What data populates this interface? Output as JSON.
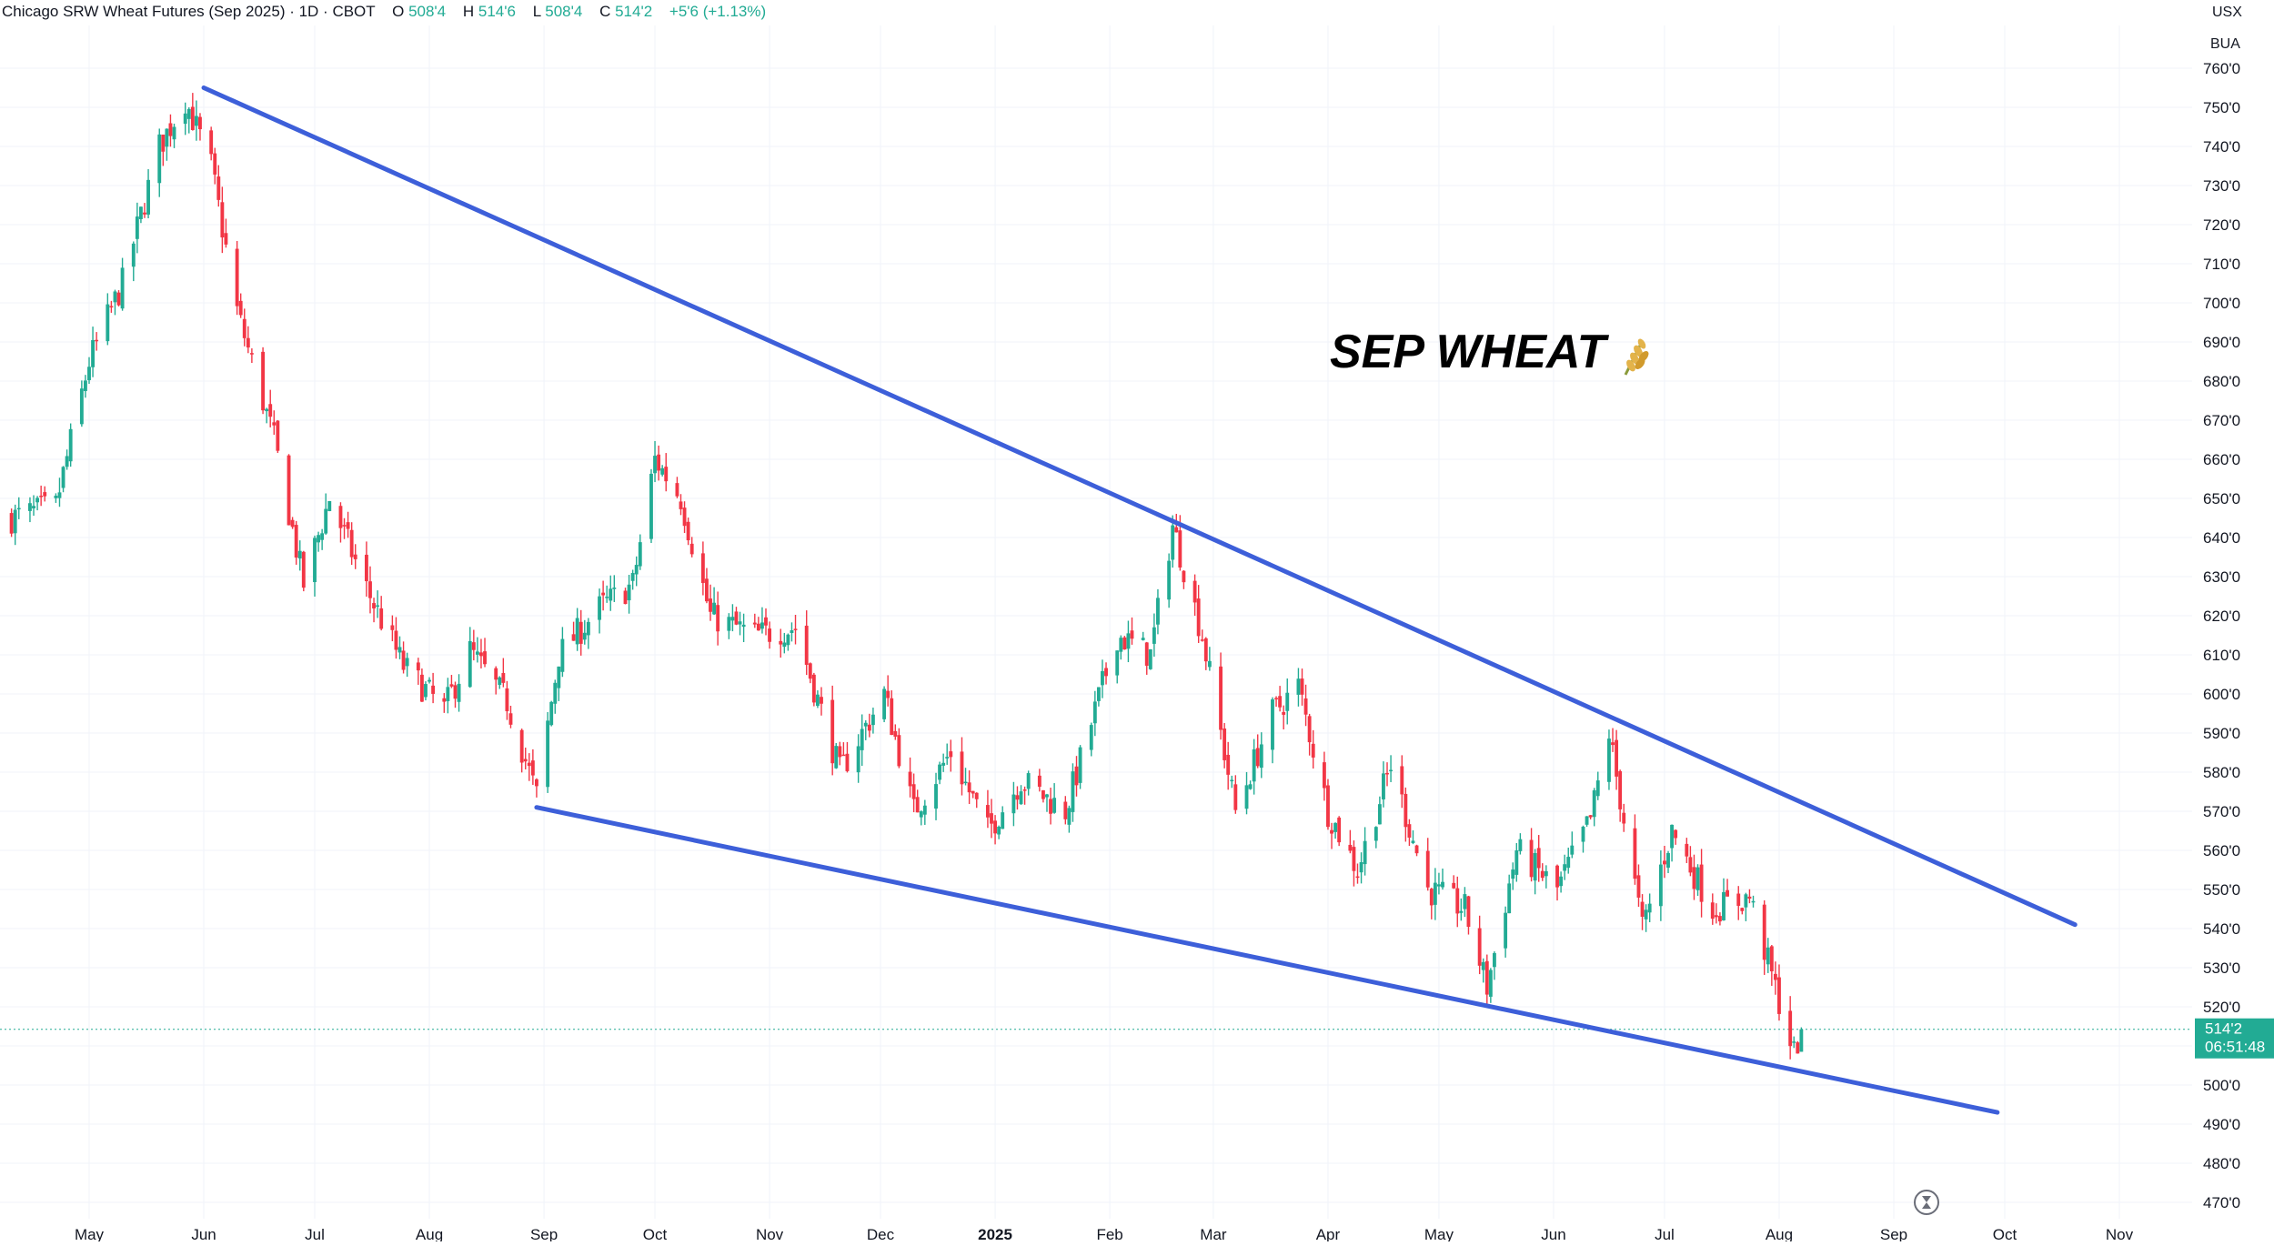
{
  "header": {
    "symbol_title": "Chicago SRW Wheat Futures (Sep 2025) · 1D · CBOT",
    "open_label": "O",
    "open_value": "508'4",
    "high_label": "H",
    "high_value": "514'6",
    "low_label": "L",
    "low_value": "508'4",
    "close_label": "C",
    "close_value": "514'2",
    "change": "+5'6 (+1.13%)"
  },
  "scale_currency": "USX",
  "scale_unit": "BUA",
  "annotation": {
    "text": "SEP WHEAT",
    "icon": "wheat-icon",
    "emoji": "🌾"
  },
  "price_tag": {
    "price": "514'2",
    "countdown": "06:51:48",
    "value": 514.25
  },
  "colors": {
    "up": "#22ab94",
    "down": "#f23645",
    "trendline": "#3d5fd9",
    "grid": "#f0f3fa",
    "text": "#131722",
    "price_tag_bg": "#22ab94"
  },
  "chart_data": {
    "type": "candlestick",
    "title": "Chicago SRW Wheat Futures (Sep 2025)",
    "interval": "1D",
    "exchange": "CBOT",
    "unit": "USX / BUA",
    "ylim": [
      465,
      762
    ],
    "y_ticks": [
      "760'0",
      "750'0",
      "740'0",
      "730'0",
      "720'0",
      "710'0",
      "700'0",
      "690'0",
      "680'0",
      "670'0",
      "660'0",
      "650'0",
      "640'0",
      "630'0",
      "620'0",
      "610'0",
      "600'0",
      "590'0",
      "580'0",
      "570'0",
      "560'0",
      "550'0",
      "540'0",
      "530'0",
      "520'0",
      "500'0",
      "490'0",
      "480'0",
      "470'0"
    ],
    "y_tick_values": [
      760,
      750,
      740,
      730,
      720,
      710,
      700,
      690,
      680,
      670,
      660,
      650,
      640,
      630,
      620,
      610,
      600,
      590,
      580,
      570,
      560,
      550,
      540,
      530,
      520,
      500,
      490,
      480,
      470
    ],
    "x_ticks": [
      "May",
      "Jun",
      "Jul",
      "Aug",
      "Sep",
      "Oct",
      "Nov",
      "Dec",
      "2025",
      "Feb",
      "Mar",
      "Apr",
      "May",
      "Jun",
      "Jul",
      "Aug",
      "Sep",
      "Oct",
      "Nov"
    ],
    "x_tick_dates": [
      "2024-05-01",
      "2024-06-01",
      "2024-07-01",
      "2024-08-01",
      "2024-09-01",
      "2024-10-01",
      "2024-11-01",
      "2024-12-01",
      "2025-01-01",
      "2025-02-01",
      "2025-03-01",
      "2025-04-01",
      "2025-05-01",
      "2025-06-01",
      "2025-07-01",
      "2025-08-01",
      "2025-09-01",
      "2025-10-01",
      "2025-11-01"
    ],
    "x_range": [
      "2024-04-10",
      "2025-11-18"
    ],
    "close_path": [
      {
        "date": "2024-04-10",
        "close": 645
      },
      {
        "date": "2024-04-22",
        "close": 648
      },
      {
        "date": "2024-05-01",
        "close": 685
      },
      {
        "date": "2024-05-10",
        "close": 705
      },
      {
        "date": "2024-05-20",
        "close": 740
      },
      {
        "date": "2024-05-27",
        "close": 752
      },
      {
        "date": "2024-06-03",
        "close": 735
      },
      {
        "date": "2024-06-10",
        "close": 698
      },
      {
        "date": "2024-06-20",
        "close": 665
      },
      {
        "date": "2024-06-28",
        "close": 628
      },
      {
        "date": "2024-07-05",
        "close": 650
      },
      {
        "date": "2024-07-15",
        "close": 627
      },
      {
        "date": "2024-07-25",
        "close": 607
      },
      {
        "date": "2024-08-05",
        "close": 596
      },
      {
        "date": "2024-08-12",
        "close": 611
      },
      {
        "date": "2024-08-22",
        "close": 598
      },
      {
        "date": "2024-08-30",
        "close": 574
      },
      {
        "date": "2024-09-05",
        "close": 610
      },
      {
        "date": "2024-09-16",
        "close": 622
      },
      {
        "date": "2024-09-25",
        "close": 628
      },
      {
        "date": "2024-10-01",
        "close": 660
      },
      {
        "date": "2024-10-08",
        "close": 650
      },
      {
        "date": "2024-10-16",
        "close": 620
      },
      {
        "date": "2024-10-28",
        "close": 615
      },
      {
        "date": "2024-11-08",
        "close": 617
      },
      {
        "date": "2024-11-20",
        "close": 580
      },
      {
        "date": "2024-12-02",
        "close": 600
      },
      {
        "date": "2024-12-10",
        "close": 570
      },
      {
        "date": "2024-12-20",
        "close": 585
      },
      {
        "date": "2024-12-30",
        "close": 565
      },
      {
        "date": "2025-01-08",
        "close": 578
      },
      {
        "date": "2025-01-20",
        "close": 570
      },
      {
        "date": "2025-02-03",
        "close": 615
      },
      {
        "date": "2025-02-12",
        "close": 610
      },
      {
        "date": "2025-02-18",
        "close": 643
      },
      {
        "date": "2025-02-26",
        "close": 615
      },
      {
        "date": "2025-03-07",
        "close": 570
      },
      {
        "date": "2025-03-17",
        "close": 595
      },
      {
        "date": "2025-03-24",
        "close": 602
      },
      {
        "date": "2025-04-01",
        "close": 570
      },
      {
        "date": "2025-04-09",
        "close": 555
      },
      {
        "date": "2025-04-18",
        "close": 582
      },
      {
        "date": "2025-04-28",
        "close": 550
      },
      {
        "date": "2025-05-08",
        "close": 545
      },
      {
        "date": "2025-05-14",
        "close": 525
      },
      {
        "date": "2025-05-22",
        "close": 560
      },
      {
        "date": "2025-06-02",
        "close": 550
      },
      {
        "date": "2025-06-11",
        "close": 568
      },
      {
        "date": "2025-06-16",
        "close": 590
      },
      {
        "date": "2025-06-25",
        "close": 540
      },
      {
        "date": "2025-07-03",
        "close": 565
      },
      {
        "date": "2025-07-14",
        "close": 545
      },
      {
        "date": "2025-07-24",
        "close": 548
      },
      {
        "date": "2025-07-30",
        "close": 528
      },
      {
        "date": "2025-08-05",
        "close": 508
      },
      {
        "date": "2025-08-07",
        "close": 514.25
      }
    ],
    "last_candle": {
      "date": "2025-08-07",
      "open": 508.5,
      "high": 514.75,
      "low": 508.5,
      "close": 514.25
    },
    "trendlines": [
      {
        "name": "upper",
        "from": {
          "date": "2024-06-01",
          "price": 755
        },
        "to": {
          "date": "2025-10-20",
          "price": 541
        }
      },
      {
        "name": "lower",
        "from": {
          "date": "2024-08-30",
          "price": 571
        },
        "to": {
          "date": "2025-09-29",
          "price": 493
        }
      }
    ],
    "current_price_line": 514.25,
    "grid": true,
    "legend": "none"
  }
}
